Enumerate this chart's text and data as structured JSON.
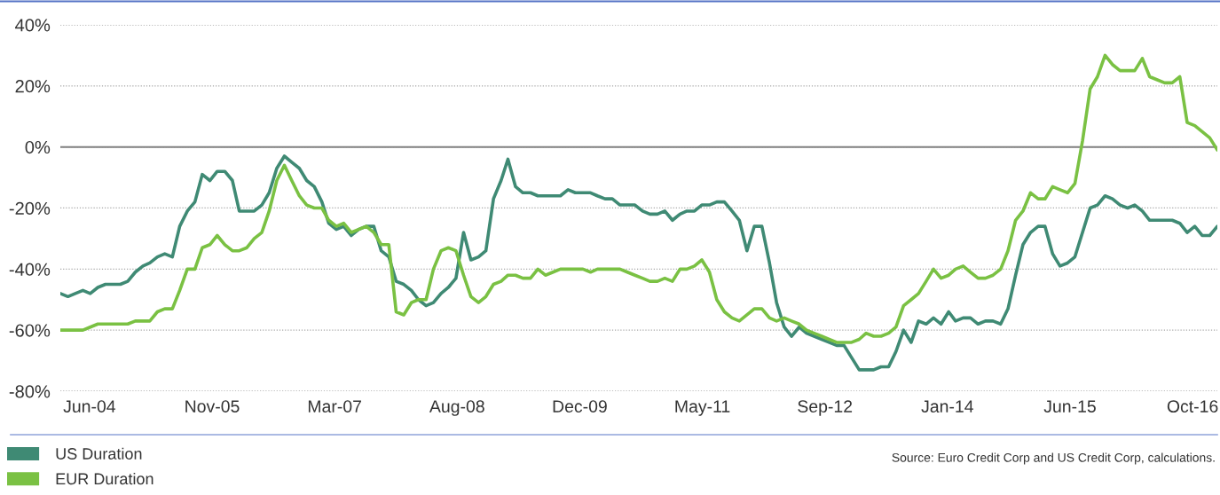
{
  "chart_data": {
    "type": "line",
    "x": [
      "2004-03",
      "2004-04",
      "2004-05",
      "2004-06",
      "2004-07",
      "2004-08",
      "2004-09",
      "2004-10",
      "2004-11",
      "2004-12",
      "2005-01",
      "2005-02",
      "2005-03",
      "2005-04",
      "2005-05",
      "2005-06",
      "2005-07",
      "2005-08",
      "2005-09",
      "2005-10",
      "2005-11",
      "2005-12",
      "2006-01",
      "2006-02",
      "2006-03",
      "2006-04",
      "2006-05",
      "2006-06",
      "2006-07",
      "2006-08",
      "2006-09",
      "2006-10",
      "2006-11",
      "2006-12",
      "2007-01",
      "2007-02",
      "2007-03",
      "2007-04",
      "2007-05",
      "2007-06",
      "2007-07",
      "2007-08",
      "2007-09",
      "2007-10",
      "2007-11",
      "2007-12",
      "2008-01",
      "2008-02",
      "2008-03",
      "2008-04",
      "2008-05",
      "2008-06",
      "2008-07",
      "2008-08",
      "2008-09",
      "2008-10",
      "2008-11",
      "2008-12",
      "2009-01",
      "2009-02",
      "2009-03",
      "2009-04",
      "2009-05",
      "2009-06",
      "2009-07",
      "2009-08",
      "2009-09",
      "2009-10",
      "2009-11",
      "2009-12",
      "2010-01",
      "2010-02",
      "2010-03",
      "2010-04",
      "2010-05",
      "2010-06",
      "2010-07",
      "2010-08",
      "2010-09",
      "2010-10",
      "2010-11",
      "2010-12",
      "2011-01",
      "2011-02",
      "2011-03",
      "2011-04",
      "2011-05",
      "2011-06",
      "2011-07",
      "2011-08",
      "2011-09",
      "2011-10",
      "2011-11",
      "2011-12",
      "2012-01",
      "2012-02",
      "2012-03",
      "2012-04",
      "2012-05",
      "2012-06",
      "2012-07",
      "2012-08",
      "2012-09",
      "2012-10",
      "2012-11",
      "2012-12",
      "2013-01",
      "2013-02",
      "2013-03",
      "2013-04",
      "2013-05",
      "2013-06",
      "2013-07",
      "2013-08",
      "2013-09",
      "2013-10",
      "2013-11",
      "2013-12",
      "2014-01",
      "2014-02",
      "2014-03",
      "2014-04",
      "2014-05",
      "2014-06",
      "2014-07",
      "2014-08",
      "2014-09",
      "2014-10",
      "2014-11",
      "2014-12",
      "2015-01",
      "2015-02",
      "2015-03",
      "2015-04",
      "2015-05",
      "2015-06",
      "2015-07",
      "2015-08",
      "2015-09",
      "2015-10",
      "2015-11",
      "2015-12",
      "2016-01",
      "2016-02",
      "2016-03",
      "2016-04",
      "2016-05",
      "2016-06",
      "2016-07",
      "2016-08",
      "2016-09",
      "2016-10",
      "2016-11",
      "2016-12",
      "2017-01",
      "2017-02"
    ],
    "series": [
      {
        "name": "US Duration",
        "color": "#3f8a74",
        "values": [
          -48,
          -49,
          -48,
          -47,
          -48,
          -46,
          -45,
          -45,
          -45,
          -44,
          -41,
          -39,
          -38,
          -36,
          -35,
          -36,
          -26,
          -21,
          -18,
          -9,
          -11,
          -8,
          -8,
          -11,
          -21,
          -21,
          -21,
          -19,
          -15,
          -7,
          -3,
          -5,
          -7,
          -11,
          -13,
          -18,
          -25,
          -27,
          -26,
          -29,
          -27,
          -26,
          -26,
          -34,
          -36,
          -44,
          -45,
          -47,
          -50,
          -52,
          -51,
          -48,
          -46,
          -43,
          -28,
          -37,
          -36,
          -34,
          -17,
          -11,
          -4,
          -13,
          -15,
          -15,
          -16,
          -16,
          -16,
          -16,
          -14,
          -15,
          -15,
          -15,
          -16,
          -17,
          -17,
          -19,
          -19,
          -19,
          -21,
          -22,
          -22,
          -21,
          -24,
          -22,
          -21,
          -21,
          -19,
          -19,
          -18,
          -18,
          -21,
          -24,
          -34,
          -26,
          -26,
          -38,
          -51,
          -59,
          -62,
          -59,
          -61,
          -62,
          -63,
          -64,
          -65,
          -65,
          -69,
          -73,
          -73,
          -73,
          -72,
          -72,
          -67,
          -60,
          -64,
          -57,
          -58,
          -56,
          -58,
          -54,
          -57,
          -56,
          -56,
          -58,
          -57,
          -57,
          -58,
          -53,
          -42,
          -32,
          -28,
          -26,
          -26,
          -35,
          -39,
          -38,
          -36,
          -28,
          -20,
          -19,
          -16,
          -17,
          -19,
          -20,
          -19,
          -21,
          -24,
          -24,
          -24,
          -24,
          -25,
          -28,
          -26,
          -29,
          -29,
          -26
        ]
      },
      {
        "name": "EUR Duration",
        "color": "#7ac143",
        "values": [
          -60,
          -60,
          -60,
          -60,
          -59,
          -58,
          -58,
          -58,
          -58,
          -58,
          -57,
          -57,
          -57,
          -54,
          -53,
          -53,
          -47,
          -40,
          -40,
          -33,
          -32,
          -29,
          -32,
          -34,
          -34,
          -33,
          -30,
          -28,
          -21,
          -11,
          -6,
          -11,
          -16,
          -19,
          -20,
          -20,
          -24,
          -26,
          -25,
          -28,
          -27,
          -26,
          -28,
          -32,
          -32,
          -54,
          -55,
          -51,
          -50,
          -50,
          -40,
          -34,
          -33,
          -34,
          -42,
          -49,
          -51,
          -49,
          -45,
          -44,
          -42,
          -42,
          -43,
          -43,
          -40,
          -42,
          -41,
          -40,
          -40,
          -40,
          -40,
          -41,
          -40,
          -40,
          -40,
          -40,
          -41,
          -42,
          -43,
          -44,
          -44,
          -43,
          -44,
          -40,
          -40,
          -39,
          -37,
          -41,
          -50,
          -54,
          -56,
          -57,
          -55,
          -53,
          -53,
          -56,
          -57,
          -56,
          -57,
          -58,
          -60,
          -61,
          -62,
          -63,
          -64,
          -64,
          -64,
          -63,
          -61,
          -62,
          -62,
          -61,
          -59,
          -52,
          -50,
          -48,
          -44,
          -40,
          -43,
          -42,
          -40,
          -39,
          -41,
          -43,
          -43,
          -42,
          -40,
          -34,
          -24,
          -21,
          -15,
          -17,
          -17,
          -13,
          -14,
          -15,
          -12,
          2,
          19,
          23,
          30,
          27,
          25,
          25,
          25,
          29,
          23,
          22,
          21,
          21,
          23,
          8,
          7,
          5,
          3,
          -1
        ]
      }
    ],
    "xlim": [
      "2004-03",
      "2017-02"
    ],
    "xticks": [
      {
        "value": "2004-06-28",
        "label": "Jun-04"
      },
      {
        "value": "2005-11-10",
        "label": "Nov-05"
      },
      {
        "value": "2007-03-25",
        "label": "Mar-07"
      },
      {
        "value": "2008-08-06",
        "label": "Aug-08"
      },
      {
        "value": "2009-12-19",
        "label": "Dec-09"
      },
      {
        "value": "2011-05-03",
        "label": "May-11"
      },
      {
        "value": "2012-09-14",
        "label": "Sep-12"
      },
      {
        "value": "2014-01-27",
        "label": "Jan-14"
      },
      {
        "value": "2015-06-11",
        "label": "Jun-15"
      },
      {
        "value": "2016-10-23",
        "label": "Oct-16"
      }
    ],
    "ylim": [
      -80,
      40
    ],
    "yticks": [
      {
        "value": -80,
        "label": "-80%"
      },
      {
        "value": -60,
        "label": "-60%"
      },
      {
        "value": -40,
        "label": "-40%"
      },
      {
        "value": -20,
        "label": "-20%"
      },
      {
        "value": 0,
        "label": "0%"
      },
      {
        "value": 20,
        "label": "20%"
      },
      {
        "value": 40,
        "label": "40%"
      }
    ],
    "grid": "y",
    "ref_lines": [
      {
        "axis": "y",
        "value": 0,
        "color": "#808080",
        "line_style": "solid"
      }
    ],
    "legend": "bottom left",
    "annotations": [
      "Source: Euro Credit Corp and US Credit Corp, calculations."
    ]
  }
}
